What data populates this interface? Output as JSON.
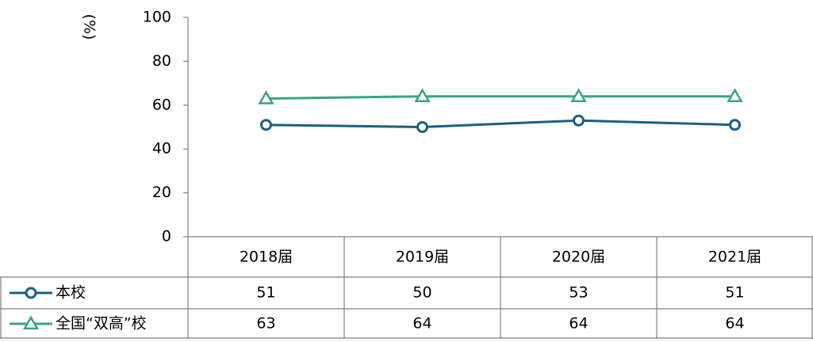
{
  "chart_data": {
    "type": "line",
    "ylabel": "(%)",
    "categories": [
      "2018届",
      "2019届",
      "2020届",
      "2021届"
    ],
    "series": [
      {
        "name": "本校",
        "color": "#1e5f80",
        "marker": "circle",
        "values": [
          51,
          50,
          53,
          51
        ]
      },
      {
        "name": "全国“双高”校",
        "color": "#3aa57a",
        "marker": "triangle",
        "values": [
          63,
          64,
          64,
          64
        ]
      }
    ],
    "ylim": [
      0,
      100
    ],
    "yticks": [
      0,
      20,
      40,
      60,
      80,
      100
    ],
    "grid": false
  }
}
